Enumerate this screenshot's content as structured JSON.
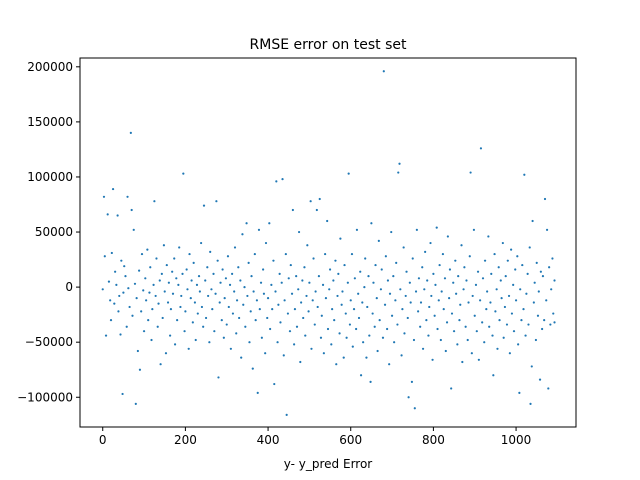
{
  "chart_data": {
    "type": "scatter",
    "title": "RMSE error on test set",
    "xlabel": "y- y_pred Error",
    "ylabel": "",
    "xlim": [
      -55,
      1145
    ],
    "ylim": [
      -127000,
      208000
    ],
    "xticks": [
      0,
      200,
      400,
      600,
      800,
      1000
    ],
    "yticks": [
      -100000,
      -50000,
      0,
      50000,
      100000,
      150000,
      200000
    ],
    "grid": false,
    "marker_color": "#1f77b4",
    "points": [
      [
        0,
        -2000
      ],
      [
        3,
        82000
      ],
      [
        5,
        28000
      ],
      [
        8,
        -44000
      ],
      [
        12,
        66000
      ],
      [
        15,
        5000
      ],
      [
        18,
        -12000
      ],
      [
        20,
        -30000
      ],
      [
        22,
        31000
      ],
      [
        25,
        89000
      ],
      [
        28,
        -15000
      ],
      [
        30,
        14000
      ],
      [
        33,
        2000
      ],
      [
        36,
        65000
      ],
      [
        38,
        -22000
      ],
      [
        40,
        -8000
      ],
      [
        43,
        -43000
      ],
      [
        45,
        24000
      ],
      [
        48,
        -97000
      ],
      [
        50,
        -5000
      ],
      [
        52,
        19000
      ],
      [
        55,
        10000
      ],
      [
        58,
        -36000
      ],
      [
        60,
        82000
      ],
      [
        62,
        -1000
      ],
      [
        65,
        -18000
      ],
      [
        68,
        140000
      ],
      [
        70,
        70000
      ],
      [
        72,
        -26000
      ],
      [
        75,
        52000
      ],
      [
        78,
        3000
      ],
      [
        80,
        -106000
      ],
      [
        82,
        -10000
      ],
      [
        85,
        -58000
      ],
      [
        88,
        15000
      ],
      [
        90,
        -75000
      ],
      [
        93,
        -22000
      ],
      [
        95,
        30000
      ],
      [
        98,
        -3000
      ],
      [
        100,
        -40000
      ],
      [
        103,
        8000
      ],
      [
        105,
        -12000
      ],
      [
        108,
        34000
      ],
      [
        110,
        -30000
      ],
      [
        113,
        -5000
      ],
      [
        115,
        18000
      ],
      [
        118,
        -48000
      ],
      [
        120,
        -20000
      ],
      [
        123,
        2000
      ],
      [
        125,
        78000
      ],
      [
        128,
        -8000
      ],
      [
        130,
        26000
      ],
      [
        133,
        -36000
      ],
      [
        135,
        -15000
      ],
      [
        138,
        6000
      ],
      [
        140,
        -70000
      ],
      [
        143,
        12000
      ],
      [
        145,
        -28000
      ],
      [
        148,
        38000
      ],
      [
        150,
        -4000
      ],
      [
        153,
        -60000
      ],
      [
        155,
        20000
      ],
      [
        158,
        -14000
      ],
      [
        160,
        4000
      ],
      [
        163,
        -44000
      ],
      [
        165,
        -20000
      ],
      [
        168,
        14000
      ],
      [
        170,
        -6000
      ],
      [
        173,
        26000
      ],
      [
        175,
        -52000
      ],
      [
        178,
        8000
      ],
      [
        180,
        -30000
      ],
      [
        183,
        2000
      ],
      [
        185,
        36000
      ],
      [
        188,
        -18000
      ],
      [
        190,
        -8000
      ],
      [
        193,
        12000
      ],
      [
        195,
        103000
      ],
      [
        198,
        -40000
      ],
      [
        200,
        -22000
      ],
      [
        203,
        16000
      ],
      [
        205,
        -2000
      ],
      [
        208,
        -56000
      ],
      [
        210,
        30000
      ],
      [
        213,
        -10000
      ],
      [
        215,
        6000
      ],
      [
        218,
        -32000
      ],
      [
        220,
        22000
      ],
      [
        223,
        -14000
      ],
      [
        225,
        -48000
      ],
      [
        228,
        2000
      ],
      [
        230,
        -24000
      ],
      [
        233,
        10000
      ],
      [
        235,
        -4000
      ],
      [
        238,
        40000
      ],
      [
        240,
        -18000
      ],
      [
        243,
        -36000
      ],
      [
        245,
        74000
      ],
      [
        248,
        6000
      ],
      [
        250,
        -28000
      ],
      [
        253,
        18000
      ],
      [
        255,
        -8000
      ],
      [
        258,
        -50000
      ],
      [
        260,
        32000
      ],
      [
        263,
        -2000
      ],
      [
        265,
        -20000
      ],
      [
        268,
        12000
      ],
      [
        270,
        -40000
      ],
      [
        273,
        -6000
      ],
      [
        275,
        78000
      ],
      [
        278,
        24000
      ],
      [
        280,
        -82000
      ],
      [
        283,
        -14000
      ],
      [
        285,
        4000
      ],
      [
        288,
        -30000
      ],
      [
        290,
        16000
      ],
      [
        293,
        -46000
      ],
      [
        295,
        -10000
      ],
      [
        298,
        8000
      ],
      [
        300,
        -34000
      ],
      [
        303,
        28000
      ],
      [
        305,
        -18000
      ],
      [
        308,
        2000
      ],
      [
        310,
        -56000
      ],
      [
        313,
        12000
      ],
      [
        315,
        -24000
      ],
      [
        318,
        -4000
      ],
      [
        320,
        36000
      ],
      [
        323,
        -42000
      ],
      [
        325,
        -12000
      ],
      [
        328,
        18000
      ],
      [
        330,
        -28000
      ],
      [
        333,
        6000
      ],
      [
        335,
        -64000
      ],
      [
        338,
        48000
      ],
      [
        340,
        -16000
      ],
      [
        343,
        0
      ],
      [
        345,
        -36000
      ],
      [
        348,
        58000
      ],
      [
        350,
        -8000
      ],
      [
        353,
        22000
      ],
      [
        355,
        -50000
      ],
      [
        358,
        -22000
      ],
      [
        360,
        10000
      ],
      [
        363,
        -74000
      ],
      [
        365,
        -4000
      ],
      [
        368,
        30000
      ],
      [
        370,
        -30000
      ],
      [
        373,
        -12000
      ],
      [
        375,
        -96000
      ],
      [
        378,
        52000
      ],
      [
        380,
        -20000
      ],
      [
        383,
        4000
      ],
      [
        385,
        -46000
      ],
      [
        388,
        16000
      ],
      [
        390,
        -6000
      ],
      [
        393,
        -60000
      ],
      [
        395,
        40000
      ],
      [
        398,
        -28000
      ],
      [
        400,
        -10000
      ],
      [
        403,
        58000
      ],
      [
        405,
        -38000
      ],
      [
        408,
        2000
      ],
      [
        410,
        -20000
      ],
      [
        413,
        24000
      ],
      [
        415,
        -88000
      ],
      [
        418,
        -4000
      ],
      [
        420,
        96000
      ],
      [
        423,
        -50000
      ],
      [
        425,
        -16000
      ],
      [
        428,
        12000
      ],
      [
        430,
        -32000
      ],
      [
        433,
        4000
      ],
      [
        435,
        98000
      ],
      [
        438,
        -62000
      ],
      [
        440,
        -12000
      ],
      [
        443,
        30000
      ],
      [
        445,
        -116000
      ],
      [
        448,
        -24000
      ],
      [
        450,
        8000
      ],
      [
        453,
        -40000
      ],
      [
        455,
        20000
      ],
      [
        458,
        -6000
      ],
      [
        460,
        70000
      ],
      [
        463,
        -52000
      ],
      [
        465,
        -20000
      ],
      [
        468,
        10000
      ],
      [
        470,
        -36000
      ],
      [
        473,
        -2000
      ],
      [
        475,
        50000
      ],
      [
        478,
        -68000
      ],
      [
        480,
        -14000
      ],
      [
        483,
        6000
      ],
      [
        485,
        -28000
      ],
      [
        488,
        18000
      ],
      [
        490,
        -44000
      ],
      [
        493,
        -8000
      ],
      [
        495,
        38000
      ],
      [
        498,
        -22000
      ],
      [
        500,
        4000
      ],
      [
        503,
        78000
      ],
      [
        505,
        -56000
      ],
      [
        508,
        -12000
      ],
      [
        510,
        26000
      ],
      [
        513,
        -34000
      ],
      [
        515,
        -4000
      ],
      [
        518,
        70000
      ],
      [
        520,
        -18000
      ],
      [
        523,
        10000
      ],
      [
        525,
        80000
      ],
      [
        528,
        -46000
      ],
      [
        530,
        -26000
      ],
      [
        533,
        2000
      ],
      [
        535,
        -60000
      ],
      [
        538,
        30000
      ],
      [
        540,
        -10000
      ],
      [
        543,
        60000
      ],
      [
        545,
        -38000
      ],
      [
        548,
        -2000
      ],
      [
        550,
        16000
      ],
      [
        553,
        -52000
      ],
      [
        555,
        -20000
      ],
      [
        558,
        6000
      ],
      [
        560,
        -30000
      ],
      [
        563,
        24000
      ],
      [
        565,
        -70000
      ],
      [
        568,
        -8000
      ],
      [
        570,
        12000
      ],
      [
        573,
        -42000
      ],
      [
        575,
        44000
      ],
      [
        578,
        -16000
      ],
      [
        580,
        -4000
      ],
      [
        583,
        -64000
      ],
      [
        585,
        20000
      ],
      [
        588,
        -24000
      ],
      [
        590,
        -46000
      ],
      [
        593,
        4000
      ],
      [
        595,
        103000
      ],
      [
        598,
        -34000
      ],
      [
        600,
        -12000
      ],
      [
        603,
        30000
      ],
      [
        605,
        -54000
      ],
      [
        608,
        -20000
      ],
      [
        610,
        8000
      ],
      [
        613,
        -38000
      ],
      [
        615,
        52000
      ],
      [
        618,
        -6000
      ],
      [
        620,
        -28000
      ],
      [
        623,
        14000
      ],
      [
        625,
        -80000
      ],
      [
        628,
        -14000
      ],
      [
        630,
        -50000
      ],
      [
        633,
        0
      ],
      [
        635,
        26000
      ],
      [
        638,
        -64000
      ],
      [
        640,
        -18000
      ],
      [
        643,
        10000
      ],
      [
        645,
        -44000
      ],
      [
        648,
        -86000
      ],
      [
        650,
        58000
      ],
      [
        653,
        -24000
      ],
      [
        655,
        4000
      ],
      [
        658,
        -36000
      ],
      [
        660,
        20000
      ],
      [
        663,
        -10000
      ],
      [
        665,
        -58000
      ],
      [
        668,
        42000
      ],
      [
        670,
        -30000
      ],
      [
        673,
        -2000
      ],
      [
        675,
        16000
      ],
      [
        678,
        -46000
      ],
      [
        680,
        196000
      ],
      [
        683,
        -16000
      ],
      [
        685,
        28000
      ],
      [
        688,
        -38000
      ],
      [
        690,
        6000
      ],
      [
        693,
        -70000
      ],
      [
        695,
        -6000
      ],
      [
        698,
        50000
      ],
      [
        700,
        -26000
      ],
      [
        703,
        10000
      ],
      [
        705,
        -50000
      ],
      [
        708,
        -12000
      ],
      [
        710,
        22000
      ],
      [
        713,
        -34000
      ],
      [
        715,
        104000
      ],
      [
        718,
        112000
      ],
      [
        720,
        -2000
      ],
      [
        723,
        -62000
      ],
      [
        725,
        -20000
      ],
      [
        728,
        36000
      ],
      [
        730,
        -42000
      ],
      [
        733,
        -8000
      ],
      [
        735,
        14000
      ],
      [
        738,
        -28000
      ],
      [
        740,
        -100000
      ],
      [
        743,
        4000
      ],
      [
        745,
        -14000
      ],
      [
        748,
        -86000
      ],
      [
        750,
        26000
      ],
      [
        753,
        -48000
      ],
      [
        755,
        -110000
      ],
      [
        758,
        -4000
      ],
      [
        760,
        52000
      ],
      [
        763,
        -22000
      ],
      [
        765,
        8000
      ],
      [
        768,
        -36000
      ],
      [
        770,
        -14000
      ],
      [
        773,
        18000
      ],
      [
        775,
        -56000
      ],
      [
        778,
        -2000
      ],
      [
        780,
        32000
      ],
      [
        783,
        -30000
      ],
      [
        785,
        6000
      ],
      [
        788,
        -44000
      ],
      [
        790,
        -18000
      ],
      [
        793,
        40000
      ],
      [
        795,
        -8000
      ],
      [
        798,
        -66000
      ],
      [
        800,
        12000
      ],
      [
        803,
        -26000
      ],
      [
        805,
        2000
      ],
      [
        808,
        54000
      ],
      [
        810,
        -38000
      ],
      [
        813,
        -12000
      ],
      [
        815,
        20000
      ],
      [
        818,
        -48000
      ],
      [
        820,
        -4000
      ],
      [
        823,
        30000
      ],
      [
        825,
        -20000
      ],
      [
        828,
        8000
      ],
      [
        830,
        -58000
      ],
      [
        833,
        -32000
      ],
      [
        835,
        46000
      ],
      [
        838,
        -10000
      ],
      [
        840,
        16000
      ],
      [
        843,
        -92000
      ],
      [
        845,
        -24000
      ],
      [
        848,
        4000
      ],
      [
        850,
        -40000
      ],
      [
        853,
        24000
      ],
      [
        855,
        -6000
      ],
      [
        858,
        -52000
      ],
      [
        860,
        10000
      ],
      [
        863,
        -30000
      ],
      [
        865,
        -16000
      ],
      [
        868,
        38000
      ],
      [
        870,
        -68000
      ],
      [
        873,
        -2000
      ],
      [
        875,
        18000
      ],
      [
        878,
        -36000
      ],
      [
        880,
        6000
      ],
      [
        883,
        -48000
      ],
      [
        885,
        -14000
      ],
      [
        888,
        28000
      ],
      [
        890,
        104000
      ],
      [
        893,
        -60000
      ],
      [
        895,
        -8000
      ],
      [
        898,
        52000
      ],
      [
        900,
        -26000
      ],
      [
        903,
        2000
      ],
      [
        905,
        -40000
      ],
      [
        908,
        14000
      ],
      [
        910,
        -66000
      ],
      [
        913,
        -12000
      ],
      [
        915,
        126000
      ],
      [
        918,
        -32000
      ],
      [
        920,
        8000
      ],
      [
        923,
        -50000
      ],
      [
        925,
        24000
      ],
      [
        928,
        -20000
      ],
      [
        930,
        -4000
      ],
      [
        933,
        46000
      ],
      [
        935,
        -36000
      ],
      [
        938,
        -14000
      ],
      [
        940,
        12000
      ],
      [
        943,
        -44000
      ],
      [
        945,
        -80000
      ],
      [
        948,
        30000
      ],
      [
        950,
        -22000
      ],
      [
        953,
        -2000
      ],
      [
        955,
        -56000
      ],
      [
        958,
        18000
      ],
      [
        960,
        -30000
      ],
      [
        963,
        6000
      ],
      [
        965,
        -10000
      ],
      [
        968,
        40000
      ],
      [
        970,
        -46000
      ],
      [
        973,
        -18000
      ],
      [
        975,
        10000
      ],
      [
        978,
        -34000
      ],
      [
        980,
        24000
      ],
      [
        983,
        -8000
      ],
      [
        985,
        -60000
      ],
      [
        988,
        34000
      ],
      [
        990,
        -24000
      ],
      [
        993,
        2000
      ],
      [
        995,
        -40000
      ],
      [
        998,
        16000
      ],
      [
        1000,
        -12000
      ],
      [
        1003,
        28000
      ],
      [
        1005,
        -52000
      ],
      [
        1008,
        -96000
      ],
      [
        1010,
        -2000
      ],
      [
        1013,
        -30000
      ],
      [
        1015,
        20000
      ],
      [
        1018,
        -20000
      ],
      [
        1020,
        102000
      ],
      [
        1023,
        -44000
      ],
      [
        1025,
        -6000
      ],
      [
        1028,
        12000
      ],
      [
        1030,
        -34000
      ],
      [
        1033,
        36000
      ],
      [
        1035,
        -106000
      ],
      [
        1038,
        -72000
      ],
      [
        1040,
        60000
      ],
      [
        1043,
        -14000
      ],
      [
        1045,
        4000
      ],
      [
        1048,
        -48000
      ],
      [
        1050,
        22000
      ],
      [
        1053,
        -26000
      ],
      [
        1055,
        -4000
      ],
      [
        1058,
        -84000
      ],
      [
        1060,
        14000
      ],
      [
        1063,
        -38000
      ],
      [
        1065,
        10000
      ],
      [
        1068,
        -30000
      ],
      [
        1070,
        80000
      ],
      [
        1073,
        -12000
      ],
      [
        1075,
        52000
      ],
      [
        1078,
        -92000
      ],
      [
        1080,
        18000
      ],
      [
        1083,
        -34000
      ],
      [
        1085,
        -2000
      ],
      [
        1088,
        26000
      ],
      [
        1090,
        -24000
      ],
      [
        1093,
        6000
      ],
      [
        1093,
        -32000
      ]
    ]
  }
}
